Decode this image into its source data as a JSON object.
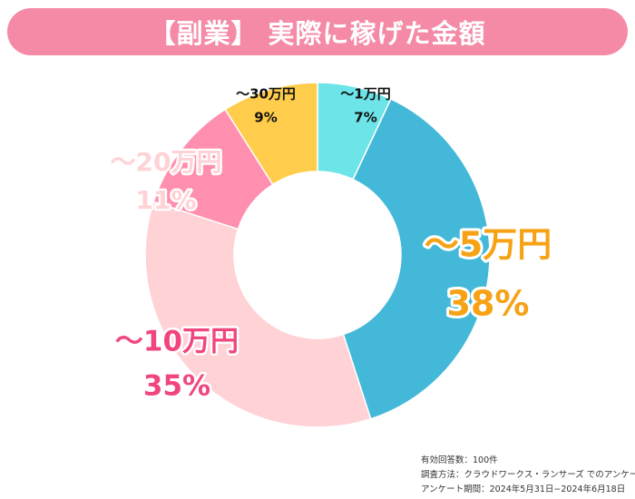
{
  "title": "【副業】 実際に稼げた金額",
  "chart_data": {
    "type": "pie",
    "donut": true,
    "start": "top",
    "direction": "clockwise",
    "legend": "none",
    "slices": [
      {
        "label": "〜1万円",
        "value": 7,
        "percent_label": "7%",
        "color": "#6de4e8",
        "label_color": "#111111"
      },
      {
        "label": "〜5万円",
        "value": 38,
        "percent_label": "38%",
        "color": "#43b8d8",
        "label_color": "#f7a215"
      },
      {
        "label": "〜10万円",
        "value": 35,
        "percent_label": "35%",
        "color": "#ffd2d6",
        "label_color": "#f0467e"
      },
      {
        "label": "〜20万円",
        "value": 11,
        "percent_label": "11%",
        "color": "#ff8fae",
        "label_color": "#ffd2d6"
      },
      {
        "label": "〜30万円",
        "value": 9,
        "percent_label": "9%",
        "color": "#ffcd4b",
        "label_color": "#111111"
      }
    ]
  },
  "footnotes": {
    "respondents": "有効回答数：100件",
    "method": "調査方法：クラウドワークス・ランサーズ でのアンケート",
    "period": "アンケート期間：2024年5月31日−2024年6月18日"
  }
}
